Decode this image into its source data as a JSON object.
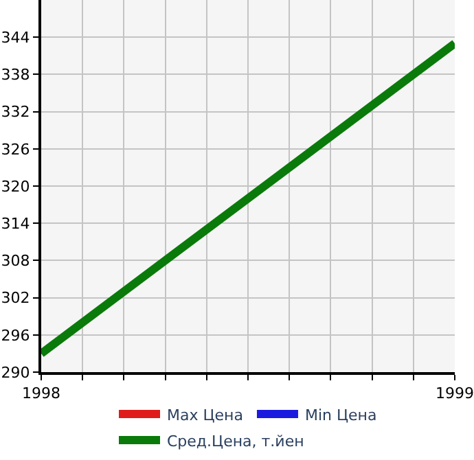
{
  "chart_data": {
    "type": "line",
    "x": [
      1998,
      1999
    ],
    "series": [
      {
        "name": "Max Цена",
        "color": "#e01b1b",
        "values": [
          null,
          null
        ]
      },
      {
        "name": "Min Цена",
        "color": "#1b1be0",
        "values": [
          null,
          null
        ]
      },
      {
        "name": "Сред.Цена, т.йен",
        "color": "#0a7a0a",
        "values": [
          293,
          343
        ]
      }
    ],
    "xlim": [
      1998,
      1999
    ],
    "xticks": [
      1998,
      {
        "value": 1998.1,
        "label": null
      },
      {
        "value": 1998.2,
        "label": null
      },
      {
        "value": 1998.3,
        "label": null
      },
      {
        "value": 1998.4,
        "label": null
      },
      {
        "value": 1998.5,
        "label": null
      },
      {
        "value": 1998.6,
        "label": null
      },
      {
        "value": 1998.7,
        "label": null
      },
      {
        "value": 1998.8,
        "label": null
      },
      {
        "value": 1998.9,
        "label": null
      },
      1999
    ],
    "ylim": [
      290,
      350
    ],
    "yticks": [
      290,
      296,
      302,
      308,
      314,
      320,
      326,
      332,
      338,
      344
    ],
    "grid": true,
    "legend": "bottom",
    "marker": "none",
    "line_style": "solid"
  }
}
